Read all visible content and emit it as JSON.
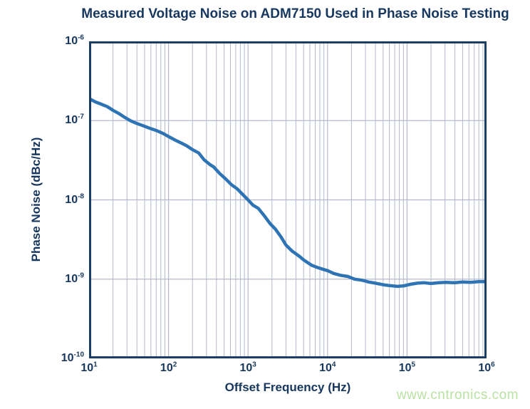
{
  "watermark": "www.cntronics.com",
  "chart_data": {
    "type": "line",
    "title": "Measured Voltage Noise on ADM7150 Used in Phase Noise Testing",
    "xlabel": "Offset Frequency (Hz)",
    "ylabel": "Phase Noise (dBc/Hz)",
    "x_scale": "log",
    "y_scale": "log",
    "xlim": [
      10,
      1000000
    ],
    "ylim": [
      1e-10,
      1e-06
    ],
    "x_tick_exponents": [
      "1",
      "2",
      "3",
      "4",
      "5",
      "6"
    ],
    "y_tick_exponents": [
      "-6",
      "-7",
      "-8",
      "-9",
      "-10"
    ],
    "grid": {
      "vertical_minor": true,
      "vertical_major": true,
      "horizontal_major": true,
      "horizontal_minor": false
    },
    "legend": "none",
    "colors": {
      "line": "#2e74b5",
      "grid": "#b5b9cd",
      "axis_border": "#1b3c63",
      "text": "#17375e",
      "watermark": "#b9e2a3",
      "background": "#ffffff"
    },
    "series": [
      {
        "points": [
          [
            10,
            1.9e-07
          ],
          [
            12,
            1.72e-07
          ],
          [
            14,
            1.62e-07
          ],
          [
            17,
            1.5e-07
          ],
          [
            20,
            1.35e-07
          ],
          [
            24,
            1.22e-07
          ],
          [
            28,
            1.1e-07
          ],
          [
            33,
            1e-07
          ],
          [
            40,
            9.2e-08
          ],
          [
            48,
            8.6e-08
          ],
          [
            58,
            8e-08
          ],
          [
            70,
            7.5e-08
          ],
          [
            85,
            6.9e-08
          ],
          [
            100,
            6.3e-08
          ],
          [
            120,
            5.7e-08
          ],
          [
            145,
            5.2e-08
          ],
          [
            170,
            4.8e-08
          ],
          [
            200,
            4.3e-08
          ],
          [
            240,
            3.9e-08
          ],
          [
            280,
            3.2e-08
          ],
          [
            330,
            2.8e-08
          ],
          [
            370,
            2.6e-08
          ],
          [
            440,
            2.15e-08
          ],
          [
            520,
            1.85e-08
          ],
          [
            620,
            1.55e-08
          ],
          [
            730,
            1.38e-08
          ],
          [
            850,
            1.18e-08
          ],
          [
            1000,
            1e-08
          ],
          [
            1150,
            8.6e-09
          ],
          [
            1350,
            7.8e-09
          ],
          [
            1600,
            6.3e-09
          ],
          [
            1900,
            5e-09
          ],
          [
            2200,
            4.3e-09
          ],
          [
            2600,
            3.4e-09
          ],
          [
            3000,
            2.7e-09
          ],
          [
            3600,
            2.25e-09
          ],
          [
            4400,
            1.95e-09
          ],
          [
            5000,
            1.75e-09
          ],
          [
            6300,
            1.5e-09
          ],
          [
            7500,
            1.4e-09
          ],
          [
            9000,
            1.32e-09
          ],
          [
            10000,
            1.28e-09
          ],
          [
            12000,
            1.18e-09
          ],
          [
            14500,
            1.12e-09
          ],
          [
            18000,
            1.08e-09
          ],
          [
            22000,
            1e-09
          ],
          [
            27000,
            9.7e-10
          ],
          [
            33000,
            9.2e-10
          ],
          [
            40000,
            8.9e-10
          ],
          [
            50000,
            8.5e-10
          ],
          [
            60000,
            8.3e-10
          ],
          [
            75000,
            8.1e-10
          ],
          [
            90000,
            8.2e-10
          ],
          [
            110000,
            8.6e-10
          ],
          [
            135000,
            8.9e-10
          ],
          [
            165000,
            9e-10
          ],
          [
            200000,
            8.8e-10
          ],
          [
            250000,
            9e-10
          ],
          [
            310000,
            9.1e-10
          ],
          [
            400000,
            9e-10
          ],
          [
            500000,
            9.2e-10
          ],
          [
            630000,
            9.1e-10
          ],
          [
            800000,
            9.3e-10
          ],
          [
            1000000,
            9.3e-10
          ]
        ]
      }
    ]
  }
}
